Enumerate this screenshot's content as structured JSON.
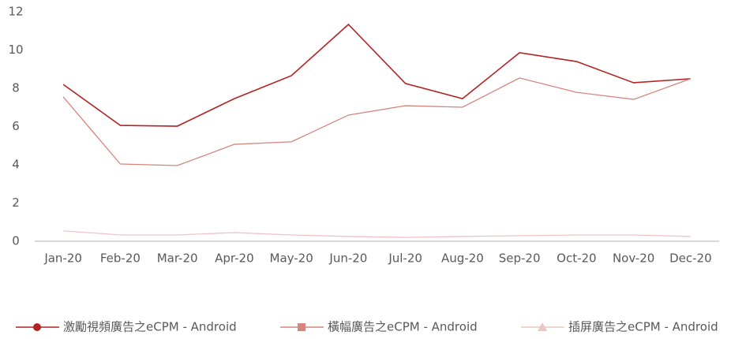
{
  "chart_data": {
    "type": "line",
    "categories": [
      "Jan-20",
      "Feb-20",
      "Mar-20",
      "Apr-20",
      "May-20",
      "Jun-20",
      "Jul-20",
      "Aug-20",
      "Sep-20",
      "Oct-20",
      "Nov-20",
      "Dec-20"
    ],
    "series": [
      {
        "name": "激勵視頻廣告之eCPM - Android",
        "color": "#b22222",
        "marker": "circle",
        "values": [
          8.2,
          6.06,
          6.02,
          7.46,
          8.66,
          11.34,
          8.25,
          7.46,
          9.86,
          9.4,
          8.29,
          8.5
        ]
      },
      {
        "name": "橫幅廣告之eCPM - Android",
        "color": "#d4857e",
        "marker": "square",
        "values": [
          7.55,
          4.04,
          3.96,
          5.07,
          5.2,
          6.6,
          7.09,
          7.01,
          8.54,
          7.79,
          7.42,
          8.5
        ]
      },
      {
        "name": "插屏廣告之eCPM - Android",
        "color": "#efc4c4",
        "marker": "triangle",
        "values": [
          0.54,
          0.33,
          0.33,
          0.45,
          0.33,
          0.25,
          0.2,
          0.25,
          0.29,
          0.33,
          0.33,
          0.25
        ]
      }
    ],
    "ylim": [
      0,
      12
    ],
    "yticks": [
      0,
      2,
      4,
      6,
      8,
      10,
      12
    ],
    "grid": false,
    "legend": "bottom"
  }
}
